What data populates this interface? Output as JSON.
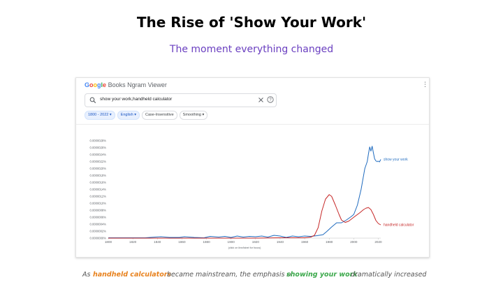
{
  "slide": {
    "title": "The Rise of 'Show Your Work'",
    "subtitle": "The moment everything changed"
  },
  "viewer": {
    "logo_letters": [
      {
        "ch": "G",
        "color": "#4285f4"
      },
      {
        "ch": "o",
        "color": "#ea4335"
      },
      {
        "ch": "o",
        "color": "#fbbc05"
      },
      {
        "ch": "g",
        "color": "#4285f4"
      },
      {
        "ch": "l",
        "color": "#34a853"
      },
      {
        "ch": "e",
        "color": "#ea4335"
      }
    ],
    "product_name": "Books Ngram Viewer",
    "search_query": "show your work,handheld calculator",
    "chips": {
      "year_range": "1800 - 2022",
      "language": "English",
      "case": "Case-Insensitive",
      "smoothing": "Smoothing"
    },
    "icons": [
      "search-icon",
      "clear-icon",
      "help-icon",
      "more-options-icon",
      "chevron-down-icon"
    ]
  },
  "caption": {
    "w1": "As",
    "w2": "handheld calculators",
    "w3": "became mainstream, the emphasis on",
    "w4": "showing your work",
    "w5": "dramatically increased"
  },
  "chart_data": {
    "type": "line",
    "title": "",
    "xlabel": "(click on line/label for focus)",
    "ylabel": "",
    "xlim": [
      1800,
      2022
    ],
    "ylim": [
      0,
      2.8e-07
    ],
    "x_ticks": [
      1800,
      1820,
      1840,
      1860,
      1880,
      1900,
      1920,
      1940,
      1960,
      1980,
      2000,
      2020
    ],
    "y_ticks": [
      "0.0000000%",
      "0.0000002%",
      "0.0000004%",
      "0.0000006%",
      "0.0000008%",
      "0.0000010%",
      "0.0000012%",
      "0.0000014%",
      "0.0000016%",
      "0.0000018%",
      "0.0000020%",
      "0.0000022%",
      "0.0000024%",
      "0.0000026%",
      "0.0000028%"
    ],
    "grid": false,
    "series": [
      {
        "name": "show your work",
        "color": "#1f6bbf",
        "x": [
          1800,
          1810,
          1820,
          1830,
          1838,
          1843,
          1850,
          1858,
          1862,
          1870,
          1878,
          1883,
          1890,
          1895,
          1900,
          1905,
          1910,
          1915,
          1920,
          1925,
          1930,
          1935,
          1940,
          1945,
          1950,
          1955,
          1960,
          1965,
          1970,
          1975,
          1978,
          1982,
          1986,
          1990,
          1994,
          1998,
          2000,
          2003,
          2006,
          2009,
          2011,
          2012,
          2013,
          2014,
          2015,
          2016,
          2017,
          2018,
          2019,
          2020,
          2021,
          2022
        ],
        "values": [
          1e-09,
          1e-09,
          1e-09,
          1e-09,
          3e-09,
          4e-09,
          2e-09,
          2e-09,
          4e-09,
          2e-09,
          1e-09,
          5e-09,
          3e-09,
          5e-09,
          2e-09,
          6e-09,
          3e-09,
          5e-09,
          4e-09,
          6e-09,
          3e-09,
          8e-09,
          6e-09,
          2e-09,
          6e-09,
          4e-09,
          6e-09,
          5e-09,
          7e-09,
          1e-08,
          1.9e-08,
          3.2e-08,
          4.4e-08,
          4.4e-08,
          5.2e-08,
          6.2e-08,
          6.8e-08,
          9.5e-08,
          1.4e-07,
          2e-07,
          2.2e-07,
          2.42e-07,
          2.62e-07,
          2.5e-07,
          2.64e-07,
          2.45e-07,
          2.28e-07,
          2.22e-07,
          2.2e-07,
          2.21e-07,
          2.19e-07,
          2.26e-07
        ]
      },
      {
        "name": "handheld calculator",
        "color": "#c62828",
        "x": [
          1800,
          1820,
          1840,
          1860,
          1880,
          1900,
          1920,
          1940,
          1950,
          1960,
          1965,
          1968,
          1971,
          1974,
          1977,
          1980,
          1982,
          1985,
          1988,
          1990,
          1993,
          1996,
          2000,
          2005,
          2008,
          2010,
          2012,
          2014,
          2016,
          2018,
          2020,
          2022
        ],
        "values": [
          0,
          0,
          0,
          0,
          0,
          0,
          0,
          1e-09,
          1e-09,
          1e-09,
          3e-09,
          8e-09,
          3e-08,
          7.8e-08,
          1.12e-07,
          1.25e-07,
          1.2e-07,
          9.5e-08,
          6.8e-08,
          5.2e-08,
          4.5e-08,
          4.9e-08,
          6e-08,
          7.3e-08,
          8.2e-08,
          8.6e-08,
          8.8e-08,
          8.2e-08,
          6.8e-08,
          5.1e-08,
          4.2e-08,
          3.8e-08
        ]
      }
    ]
  }
}
